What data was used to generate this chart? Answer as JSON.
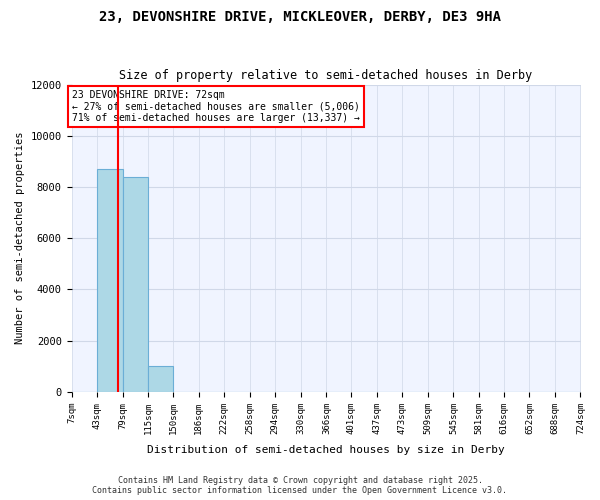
{
  "title": "23, DEVONSHIRE DRIVE, MICKLEOVER, DERBY, DE3 9HA",
  "subtitle": "Size of property relative to semi-detached houses in Derby",
  "xlabel": "Distribution of semi-detached houses by size in Derby",
  "ylabel": "Number of semi-detached properties",
  "property_size": 72,
  "property_label": "23 DEVONSHIRE DRIVE: 72sqm",
  "pct_smaller": 27,
  "pct_larger": 71,
  "count_smaller": 5006,
  "count_larger": 13337,
  "footer_line1": "Contains HM Land Registry data © Crown copyright and database right 2025.",
  "footer_line2": "Contains public sector information licensed under the Open Government Licence v3.0.",
  "bin_edges": [
    7,
    43,
    79,
    115,
    150,
    186,
    222,
    258,
    294,
    330,
    366,
    401,
    437,
    473,
    509,
    545,
    581,
    616,
    652,
    688,
    724
  ],
  "bar_heights": [
    0,
    8700,
    8400,
    1000,
    0,
    0,
    0,
    0,
    0,
    0,
    0,
    0,
    0,
    0,
    0,
    0,
    0,
    0,
    0,
    0
  ],
  "bar_color": "#add8e6",
  "bar_edge_color": "#6baed6",
  "grid_color": "#d0d8e8",
  "background_color": "#f0f4ff",
  "annotation_box_color": "#ff0000",
  "red_line_color": "#ff0000",
  "ylim": [
    0,
    12000
  ],
  "yticks": [
    0,
    2000,
    4000,
    6000,
    8000,
    10000,
    12000
  ]
}
